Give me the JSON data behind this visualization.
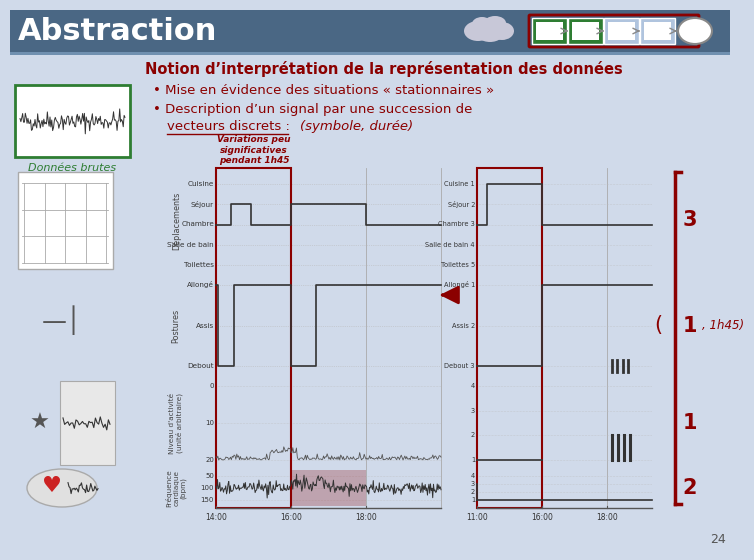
{
  "title": "Abstraction",
  "slide_bg_color": "#d0daea",
  "header_bg_color": "#4a6784",
  "notion_title": "Notion d’interprétation de la représentation des données",
  "notion_color": "#8B0000",
  "bullet1": "Mise en évidence des situations « stationnaires »",
  "bullet2": "Description d’un signal par une succession de",
  "bullet2b": "vecteurs discrets :",
  "bullet2c": "(symbole, durée)",
  "donnees_brutes_label": "Données brutes",
  "donnees_brutes_color": "#2e7d32",
  "variations_text": "Variations peu\nsignificatives\npendant 1h45",
  "variations_color": "#8B0000",
  "right_numbers": [
    "3",
    "1",
    "1",
    "2"
  ],
  "right_numbers_color": "#8B0000",
  "parens_text": "(",
  "parens_text2": ", 1h45)",
  "parens_color": "#8B0000",
  "footer_number": "24",
  "dep_labels_l": [
    "Toilettes",
    "Salle de bain",
    "Chambre",
    "Séjour",
    "Cuisine"
  ],
  "dep_labels_r": [
    "Toilettes 5",
    "Salle de bain 4",
    "Chambre 3",
    "Séjour 2",
    "Cuisine 1"
  ],
  "pos_labels_l": [
    "Debout",
    "Assis",
    "Allongé"
  ],
  "pos_labels_r": [
    "Debout 3",
    "Assis 2",
    "Allongé 1"
  ],
  "act_labels_l": [
    "20",
    "10",
    "0"
  ],
  "act_labels_r": [
    "4",
    "3",
    "2",
    "1"
  ],
  "fc_labels_l": [
    "150",
    "100",
    "50"
  ],
  "fc_labels_r": [
    "4",
    "3",
    "2",
    "1"
  ],
  "xticks_l": [
    "14:00",
    "16:00",
    "18:00"
  ],
  "xticks_r": [
    "11:00",
    "16:00",
    "18:00"
  ]
}
